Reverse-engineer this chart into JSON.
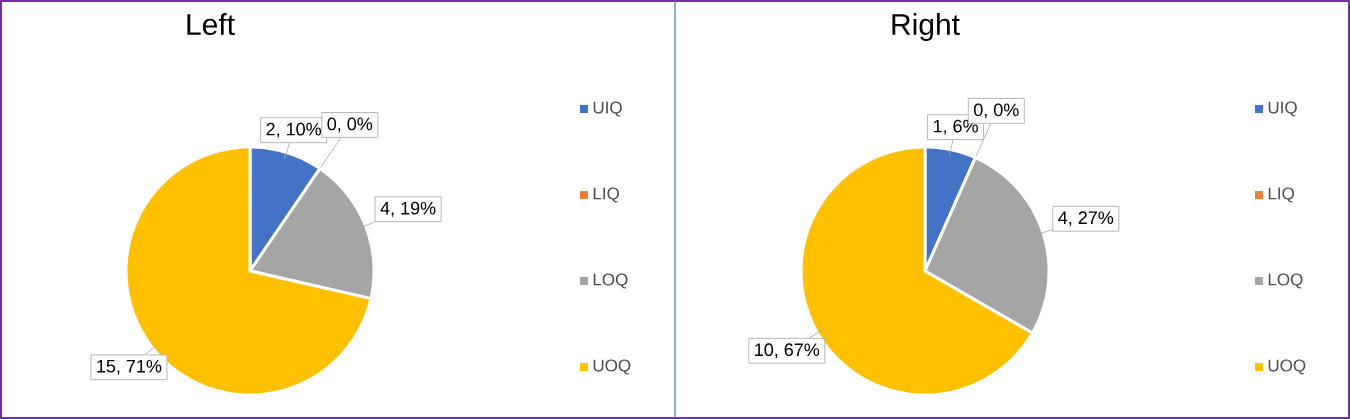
{
  "chart_data": [
    {
      "type": "pie",
      "title": "Left",
      "categories": [
        "UIQ",
        "LIQ",
        "LOQ",
        "UOQ"
      ],
      "values": [
        2,
        0,
        4,
        15
      ],
      "value_labels": [
        "2, 10%",
        "0, 0%",
        "4, 19%",
        "15, 71%"
      ],
      "colors": [
        "#4472c4",
        "#ed7d31",
        "#a5a5a5",
        "#ffc000"
      ],
      "legend": "right"
    },
    {
      "type": "pie",
      "title": "Right",
      "categories": [
        "UIQ",
        "LIQ",
        "LOQ",
        "UOQ"
      ],
      "values": [
        1,
        0,
        4,
        10
      ],
      "value_labels": [
        "1, 6%",
        "0, 0%",
        "4, 27%",
        "10, 67%"
      ],
      "colors": [
        "#4472c4",
        "#ed7d31",
        "#a5a5a5",
        "#ffc000"
      ],
      "legend": "right"
    }
  ]
}
